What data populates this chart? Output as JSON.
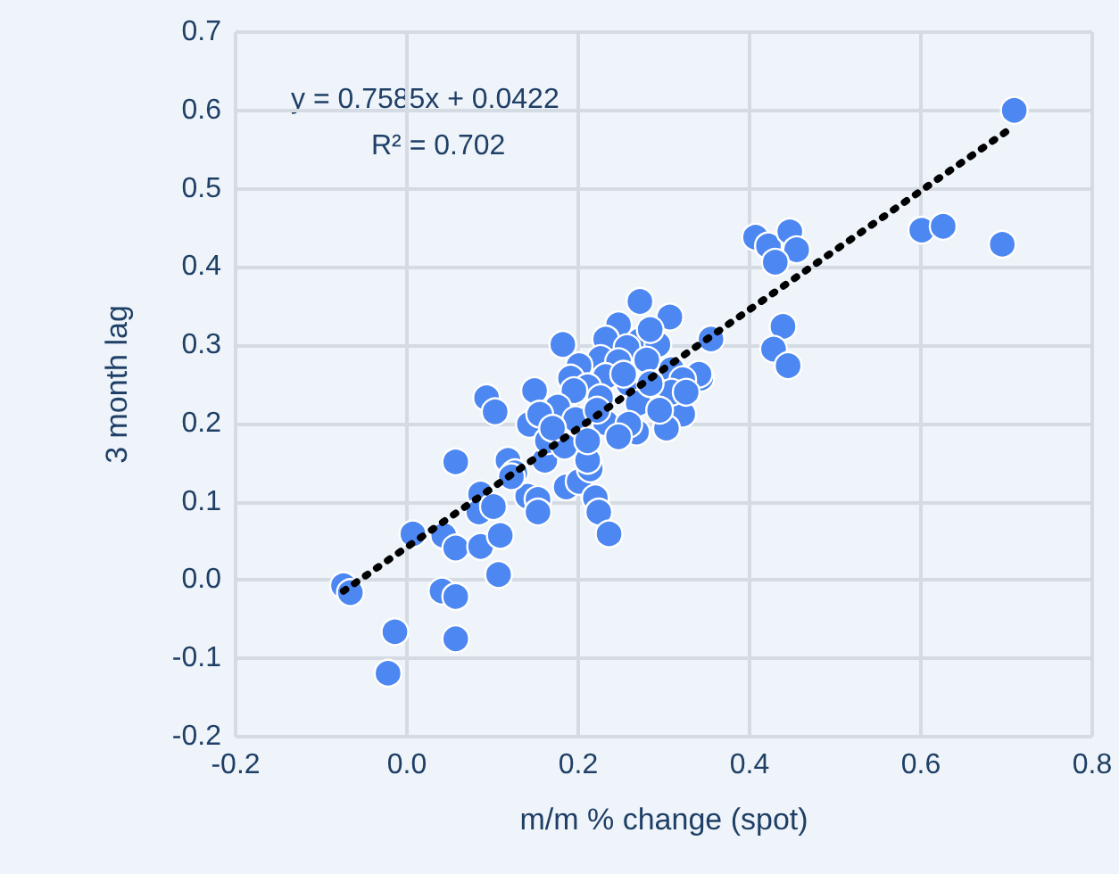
{
  "chart_data": {
    "type": "scatter",
    "xlabel": "m/m % change (spot)",
    "ylabel": "3 month lag",
    "annotations": [
      "y = 0.7585x + 0.0422",
      "R² = 0.702"
    ],
    "xlim": [
      -0.2,
      0.8
    ],
    "xticks": [
      {
        "value": -0.2,
        "label": "-0.2"
      },
      {
        "value": 0,
        "label": "0.0"
      },
      {
        "value": 0.2,
        "label": "0.2"
      },
      {
        "value": 0.4,
        "label": "0.4"
      },
      {
        "value": 0.6,
        "label": "0.6"
      },
      {
        "value": 0.8,
        "label": "0.8"
      }
    ],
    "ylim": [
      -0.2,
      0.7
    ],
    "yticks": [
      {
        "value": -0.2,
        "label": "-0.2"
      },
      {
        "value": -0.1,
        "label": "-0.1"
      },
      {
        "value": 0,
        "label": "0.0"
      },
      {
        "value": 0.1,
        "label": "0.1"
      },
      {
        "value": 0.2,
        "label": "0.2"
      },
      {
        "value": 0.3,
        "label": "0.3"
      },
      {
        "value": 0.4,
        "label": "0.4"
      },
      {
        "value": 0.5,
        "label": "0.5"
      },
      {
        "value": 0.6,
        "label": "0.6"
      },
      {
        "value": 0.7,
        "label": "0.7"
      }
    ],
    "grid": true,
    "marker": "circle",
    "series": [
      {
        "color": "#4d87f2",
        "x": [
          -0.074,
          -0.066,
          -0.014,
          -0.022,
          0.007,
          0.041,
          0.057,
          0.057,
          0.057,
          0.043,
          0.057,
          0.086,
          0.107,
          0.109,
          0.086,
          0.084,
          0.101,
          0.093,
          0.103,
          0.182,
          0.149,
          0.143,
          0.118,
          0.126,
          0.141,
          0.153,
          0.153,
          0.161,
          0.186,
          0.201,
          0.214,
          0.211,
          0.22,
          0.224,
          0.236,
          0.272,
          0.355,
          0.268,
          0.322,
          0.303,
          0.343,
          0.709,
          0.601,
          0.626,
          0.695,
          0.407,
          0.422,
          0.447,
          0.455,
          0.43,
          0.439,
          0.428,
          0.445,
          0.307,
          0.247,
          0.272,
          0.293,
          0.232,
          0.257,
          0.226,
          0.201,
          0.247,
          0.28,
          0.309,
          0.341,
          0.322,
          0.232,
          0.191,
          0.211,
          0.259,
          0.309,
          0.326,
          0.195,
          0.226,
          0.27,
          0.295,
          0.176,
          0.197,
          0.155,
          0.232,
          0.259,
          0.247,
          0.164,
          0.184,
          0.211,
          0.122,
          0.284,
          0.253,
          0.222,
          0.284,
          0.17
        ],
        "values": [
          -0.007,
          -0.016,
          -0.066,
          -0.119,
          0.059,
          -0.014,
          -0.021,
          -0.075,
          0.151,
          0.057,
          0.041,
          0.043,
          0.007,
          0.057,
          0.11,
          0.087,
          0.094,
          0.233,
          0.215,
          0.301,
          0.242,
          0.199,
          0.153,
          0.137,
          0.107,
          0.103,
          0.087,
          0.153,
          0.119,
          0.126,
          0.142,
          0.153,
          0.105,
          0.087,
          0.059,
          0.356,
          0.308,
          0.189,
          0.212,
          0.194,
          0.258,
          0.6,
          0.447,
          0.452,
          0.429,
          0.438,
          0.427,
          0.445,
          0.422,
          0.406,
          0.324,
          0.295,
          0.274,
          0.336,
          0.326,
          0.306,
          0.301,
          0.308,
          0.297,
          0.283,
          0.274,
          0.279,
          0.281,
          0.269,
          0.263,
          0.256,
          0.26,
          0.258,
          0.247,
          0.251,
          0.24,
          0.24,
          0.242,
          0.233,
          0.226,
          0.217,
          0.221,
          0.205,
          0.212,
          0.201,
          0.199,
          0.183,
          0.178,
          0.171,
          0.178,
          0.132,
          0.32,
          0.263,
          0.217,
          0.251,
          0.194
        ]
      },
      {
        "type": "line",
        "color": "#000000",
        "marker": "none",
        "line_style": "dotted",
        "x": [
          -0.074,
          0.709
        ],
        "values": [
          -0.014,
          0.58
        ]
      }
    ]
  }
}
